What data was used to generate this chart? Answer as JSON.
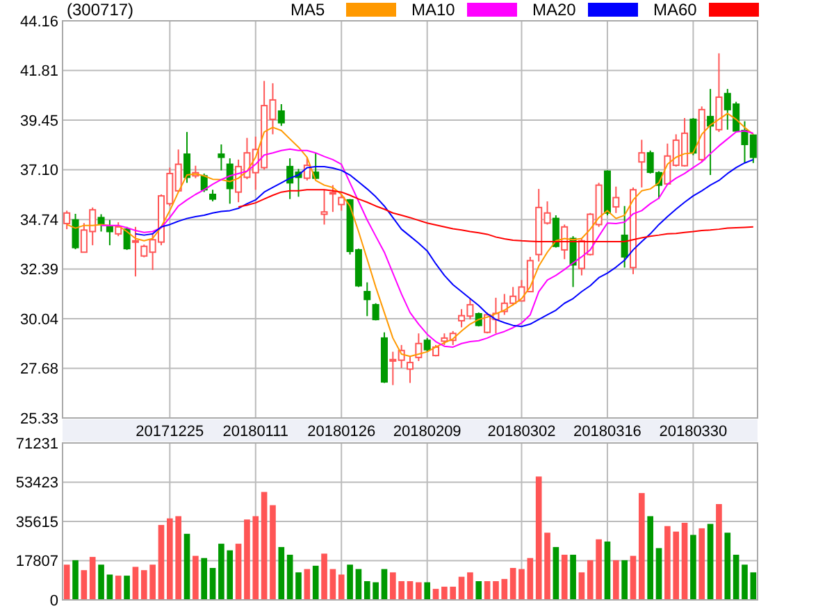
{
  "chart_data": [
    {
      "type": "candlestick",
      "title": "(300717)",
      "categories": [
        null,
        null,
        null,
        null,
        null,
        null,
        null,
        null,
        null,
        null,
        null,
        null,
        "20171225",
        null,
        null,
        null,
        null,
        null,
        null,
        null,
        null,
        null,
        "20180111",
        null,
        null,
        null,
        null,
        null,
        null,
        null,
        null,
        null,
        "20180126",
        null,
        null,
        null,
        null,
        null,
        null,
        null,
        null,
        null,
        "20180209",
        null,
        null,
        null,
        null,
        null,
        null,
        null,
        null,
        null,
        null,
        "20180302",
        null,
        null,
        null,
        null,
        null,
        null,
        null,
        null,
        null,
        "20180316",
        null,
        null,
        null,
        null,
        null,
        null,
        null,
        null,
        null,
        "20180330",
        null,
        null,
        null,
        null,
        null,
        null,
        null
      ],
      "ohlc": [
        [
          34.55,
          35.16,
          34.28,
          35.05
        ],
        [
          34.72,
          35.01,
          33.33,
          33.41
        ],
        [
          33.19,
          34.57,
          33.17,
          34.24
        ],
        [
          34.17,
          35.31,
          33.52,
          35.2
        ],
        [
          34.83,
          34.99,
          34.17,
          34.55
        ],
        [
          34.39,
          34.72,
          33.52,
          34.17
        ],
        [
          34.06,
          34.61,
          33.95,
          34.39
        ],
        [
          34.28,
          34.39,
          33.3,
          33.36
        ],
        [
          33.7,
          34.39,
          32.04,
          33.73
        ],
        [
          33.01,
          33.55,
          32.95,
          33.47
        ],
        [
          33.19,
          34.06,
          32.35,
          33.78
        ],
        [
          33.67,
          35.93,
          33.52,
          35.86
        ],
        [
          35.49,
          37.2,
          35.38,
          36.92
        ],
        [
          36.1,
          38.06,
          36.04,
          37.36
        ],
        [
          37.84,
          38.89,
          36.48,
          36.74
        ],
        [
          36.81,
          37.29,
          36.7,
          36.96
        ],
        [
          36.81,
          36.92,
          36.04,
          36.15
        ],
        [
          35.93,
          36.15,
          35.6,
          35.71
        ],
        [
          37.84,
          38.3,
          37.07,
          37.69
        ],
        [
          37.36,
          37.64,
          35.49,
          36.21
        ],
        [
          36.04,
          37.58,
          35.56,
          37.25
        ],
        [
          36.74,
          38.61,
          36.65,
          37.9
        ],
        [
          36.96,
          38.67,
          36.15,
          38.06
        ],
        [
          37.2,
          41.31,
          37.1,
          40.14
        ],
        [
          39.49,
          41.2,
          38.78,
          40.41
        ],
        [
          39.88,
          40.21,
          39.18,
          39.33
        ],
        [
          37.25,
          37.64,
          35.71,
          36.48
        ],
        [
          36.98,
          37.14,
          35.82,
          36.74
        ],
        [
          36.7,
          37.69,
          36.59,
          37.31
        ],
        [
          36.98,
          37.9,
          36.65,
          36.7
        ],
        [
          34.99,
          36.15,
          34.5,
          35.1
        ],
        [
          36.0,
          36.37,
          35.1,
          36.02
        ],
        [
          35.45,
          35.93,
          35.16,
          35.78
        ],
        [
          35.67,
          35.71,
          33.08,
          33.23
        ],
        [
          33.3,
          33.36,
          31.54,
          31.6
        ],
        [
          31.32,
          31.76,
          30.16,
          30.95
        ],
        [
          30.7,
          30.77,
          29.96,
          30.0
        ],
        [
          29.12,
          29.39,
          26.99,
          27.04
        ],
        [
          28.03,
          28.47,
          26.89,
          28.1
        ],
        [
          28.07,
          28.79,
          27.7,
          28.53
        ],
        [
          27.65,
          28.25,
          26.99,
          27.96
        ],
        [
          28.2,
          29.34,
          28.03,
          28.86
        ],
        [
          29.01,
          29.12,
          28.47,
          28.57
        ],
        [
          28.29,
          28.79,
          28.25,
          28.69
        ],
        [
          28.97,
          29.34,
          28.79,
          29.12
        ],
        [
          29.01,
          29.45,
          28.79,
          29.34
        ],
        [
          29.94,
          30.49,
          29.63,
          30.18
        ],
        [
          30.16,
          30.99,
          30.0,
          30.7
        ],
        [
          30.27,
          30.33,
          29.67,
          29.72
        ],
        [
          29.39,
          30.33,
          29.34,
          30.22
        ],
        [
          30.0,
          31.03,
          29.34,
          30.29
        ],
        [
          30.38,
          31.21,
          30.22,
          30.77
        ],
        [
          30.77,
          31.54,
          30.66,
          31.1
        ],
        [
          30.88,
          31.87,
          30.88,
          31.54
        ],
        [
          31.32,
          32.97,
          31.32,
          32.79
        ],
        [
          33.08,
          36.19,
          32.75,
          35.31
        ],
        [
          34.57,
          35.6,
          34.5,
          35.05
        ],
        [
          34.79,
          34.94,
          33.41,
          33.47
        ],
        [
          33.3,
          34.5,
          32.86,
          34.39
        ],
        [
          33.84,
          33.95,
          31.54,
          32.59
        ],
        [
          32.42,
          33.84,
          32.09,
          33.73
        ],
        [
          33.08,
          35.05,
          33.03,
          34.99
        ],
        [
          34.5,
          36.48,
          34.39,
          36.37
        ],
        [
          37.03,
          37.07,
          34.94,
          35.05
        ],
        [
          35.34,
          36.3,
          35.05,
          35.78
        ],
        [
          33.99,
          35.38,
          32.46,
          32.97
        ],
        [
          32.46,
          36.26,
          32.15,
          36.15
        ],
        [
          37.47,
          38.52,
          36.26,
          37.9
        ],
        [
          37.9,
          38.01,
          36.92,
          36.98
        ],
        [
          36.96,
          37.03,
          35.71,
          36.37
        ],
        [
          36.43,
          38.34,
          36.37,
          37.75
        ],
        [
          37.31,
          38.78,
          37.25,
          38.5
        ],
        [
          37.29,
          39.55,
          37.25,
          38.83
        ],
        [
          39.49,
          39.55,
          37.79,
          37.9
        ],
        [
          37.58,
          40.1,
          37.47,
          39.95
        ],
        [
          39.62,
          40.93,
          36.85,
          39.18
        ],
        [
          39.0,
          42.62,
          38.89,
          40.54
        ],
        [
          40.71,
          40.93,
          39.0,
          39.95
        ],
        [
          40.21,
          40.32,
          38.89,
          38.94
        ],
        [
          38.96,
          39.4,
          37.42,
          38.3
        ],
        [
          38.74,
          38.78,
          37.42,
          37.69
        ]
      ],
      "colors": [
        "#ff5555",
        "#009900",
        "#ff5555",
        "#ff5555",
        "#009900",
        "#009900",
        "#ff5555",
        "#009900",
        "#ff5555",
        "#ff5555",
        "#ff5555",
        "#ff5555",
        "#ff5555",
        "#ff5555",
        "#009900",
        "#ff5555",
        "#009900",
        "#009900",
        "#009900",
        "#009900",
        "#ff5555",
        "#ff5555",
        "#ff5555",
        "#ff5555",
        "#ff5555",
        "#009900",
        "#009900",
        "#009900",
        "#ff5555",
        "#009900",
        "#ff5555",
        "#ff5555",
        "#ff5555",
        "#009900",
        "#009900",
        "#009900",
        "#009900",
        "#009900",
        "#ff5555",
        "#ff5555",
        "#ff5555",
        "#ff5555",
        "#009900",
        "#ff5555",
        "#ff5555",
        "#ff5555",
        "#ff5555",
        "#ff5555",
        "#009900",
        "#ff5555",
        "#ff5555",
        "#ff5555",
        "#ff5555",
        "#ff5555",
        "#ff5555",
        "#ff5555",
        "#ff5555",
        "#009900",
        "#ff5555",
        "#009900",
        "#ff5555",
        "#ff5555",
        "#ff5555",
        "#009900",
        "#ff5555",
        "#009900",
        "#ff5555",
        "#ff5555",
        "#009900",
        "#009900",
        "#ff5555",
        "#ff5555",
        "#ff5555",
        "#009900",
        "#ff5555",
        "#009900",
        "#ff5555",
        "#009900",
        "#009900",
        "#009900",
        "#009900"
      ],
      "series": [
        {
          "name": "MA5",
          "type": "line",
          "color": "#ff9900",
          "values": [
            34.5,
            34.33,
            34.46,
            34.46,
            34.5,
            34.46,
            34.44,
            34.17,
            33.84,
            33.73,
            33.84,
            34.39,
            35.16,
            36.04,
            36.85,
            36.9,
            36.81,
            36.65,
            36.63,
            36.54,
            36.7,
            37.03,
            37.69,
            38.89,
            39.11,
            38.96,
            38.56,
            38.17,
            37.69,
            36.59,
            36.37,
            36.26,
            35.93,
            35.38,
            34.17,
            32.86,
            31.54,
            30.33,
            29.12,
            28.36,
            28.25,
            28.36,
            28.47,
            28.69,
            28.9,
            29.08,
            29.45,
            29.78,
            30.0,
            30.11,
            30.27,
            30.44,
            30.7,
            30.99,
            31.54,
            32.53,
            33.19,
            33.73,
            33.84,
            33.78,
            33.84,
            34.28,
            34.83,
            35.16,
            34.79,
            34.94,
            35.67,
            36.1,
            36.19,
            36.48,
            37.36,
            37.69,
            37.86,
            37.9,
            38.78,
            39.22,
            39.49,
            39.77,
            39.49,
            39.11,
            38.78
          ]
        },
        {
          "name": "MA10",
          "type": "line",
          "color": "#ff00ff",
          "values": [
            null,
            null,
            null,
            null,
            34.46,
            34.46,
            34.46,
            34.35,
            34.22,
            34.13,
            34.17,
            34.35,
            34.83,
            35.38,
            35.67,
            35.93,
            36.15,
            36.41,
            36.63,
            36.81,
            36.92,
            37.03,
            37.36,
            37.8,
            37.9,
            38.01,
            38.08,
            38.01,
            38.01,
            37.9,
            37.73,
            37.58,
            37.36,
            36.48,
            35.6,
            34.72,
            33.95,
            33.19,
            32.2,
            31.21,
            30.33,
            29.78,
            29.3,
            28.95,
            28.73,
            28.69,
            28.86,
            28.95,
            28.99,
            29.12,
            29.3,
            29.43,
            29.61,
            29.83,
            30.22,
            31.32,
            31.87,
            32.09,
            32.37,
            32.68,
            32.97,
            33.3,
            33.95,
            34.57,
            34.55,
            34.61,
            35.01,
            35.16,
            35.49,
            35.75,
            36.41,
            36.7,
            36.92,
            37.2,
            37.47,
            37.86,
            38.23,
            38.56,
            38.89,
            38.94,
            38.83
          ]
        },
        {
          "name": "MA20",
          "type": "line",
          "color": "#0000ff",
          "values": [
            null,
            null,
            null,
            null,
            null,
            null,
            null,
            null,
            34.06,
            34.0,
            34.06,
            34.39,
            34.5,
            34.66,
            34.79,
            34.88,
            34.94,
            35.05,
            35.12,
            35.16,
            35.27,
            35.49,
            35.67,
            36.04,
            36.26,
            36.48,
            36.7,
            36.85,
            37.2,
            37.25,
            37.25,
            37.18,
            37.07,
            36.85,
            36.52,
            36.19,
            35.82,
            35.38,
            34.83,
            34.28,
            33.95,
            33.62,
            33.25,
            32.64,
            32.09,
            31.65,
            31.32,
            30.99,
            30.66,
            30.27,
            30.0,
            29.85,
            29.72,
            29.67,
            29.78,
            30.0,
            30.22,
            30.44,
            30.77,
            30.99,
            31.32,
            31.6,
            31.98,
            32.2,
            32.48,
            32.81,
            33.3,
            33.69,
            34.06,
            34.5,
            34.88,
            35.23,
            35.56,
            35.86,
            36.1,
            36.37,
            36.59,
            36.92,
            37.2,
            37.42,
            37.58
          ]
        },
        {
          "name": "MA60",
          "type": "line",
          "color": "#ff0000",
          "values": [
            null,
            null,
            null,
            null,
            null,
            null,
            null,
            null,
            null,
            null,
            null,
            null,
            null,
            null,
            null,
            null,
            null,
            null,
            null,
            null,
            35.34,
            35.42,
            35.53,
            35.71,
            35.89,
            36.04,
            36.1,
            36.1,
            36.15,
            36.15,
            36.15,
            36.1,
            36.04,
            35.89,
            35.71,
            35.56,
            35.38,
            35.23,
            35.05,
            34.94,
            34.83,
            34.7,
            34.57,
            34.48,
            34.39,
            34.3,
            34.24,
            34.17,
            34.11,
            34.04,
            33.91,
            33.82,
            33.76,
            33.73,
            33.71,
            33.69,
            33.69,
            33.69,
            33.69,
            33.69,
            33.69,
            33.69,
            33.69,
            33.69,
            33.69,
            33.69,
            33.78,
            33.87,
            33.95,
            34.0,
            34.06,
            34.08,
            34.13,
            34.17,
            34.22,
            34.24,
            34.28,
            34.33,
            34.35,
            34.37,
            34.39
          ]
        }
      ],
      "ylim": [
        25.33,
        44.16
      ],
      "yticks": [
        25.33,
        27.68,
        30.04,
        32.39,
        34.74,
        {
          "value": 37.1,
          "label": "37.10"
        },
        39.45,
        41.81,
        44.16
      ],
      "grid": true,
      "legend": "top right"
    },
    {
      "type": "bar",
      "categories": [
        null,
        null,
        null,
        null,
        null,
        null,
        null,
        null,
        null,
        null,
        null,
        null,
        "20171225",
        null,
        null,
        null,
        null,
        null,
        null,
        null,
        null,
        null,
        "20180111",
        null,
        null,
        null,
        null,
        null,
        null,
        null,
        null,
        null,
        "20180126",
        null,
        null,
        null,
        null,
        null,
        null,
        null,
        null,
        null,
        "20180209",
        null,
        null,
        null,
        null,
        null,
        null,
        null,
        null,
        null,
        null,
        "20180302",
        null,
        null,
        null,
        null,
        null,
        null,
        null,
        null,
        null,
        "20180316",
        null,
        null,
        null,
        null,
        null,
        null,
        null,
        null,
        null,
        "20180330",
        null,
        null,
        null,
        null,
        null,
        null,
        null
      ],
      "values": [
        16000,
        18000,
        13500,
        19500,
        16000,
        11500,
        11000,
        11000,
        15000,
        13500,
        16000,
        34000,
        37000,
        38000,
        30000,
        20000,
        19000,
        14500,
        25500,
        22500,
        25500,
        36500,
        38000,
        49000,
        43000,
        24000,
        20500,
        12500,
        14000,
        15500,
        21000,
        14000,
        11500,
        16000,
        14000,
        8500,
        8000,
        14000,
        12500,
        8500,
        8500,
        8000,
        8000,
        5000,
        6000,
        6000,
        10500,
        12500,
        8500,
        8500,
        8500,
        9500,
        14500,
        14000,
        19000,
        56000,
        30500,
        24000,
        20500,
        20500,
        12500,
        18000,
        27500,
        26500,
        18000,
        18000,
        20000,
        48500,
        38000,
        23500,
        33500,
        31000,
        35000,
        29500,
        32500,
        34500,
        43500,
        30500,
        20500,
        16000,
        12500
      ],
      "colors": [
        "#ff5555",
        "#009900",
        "#ff5555",
        "#ff5555",
        "#009900",
        "#009900",
        "#ff5555",
        "#009900",
        "#ff5555",
        "#ff5555",
        "#ff5555",
        "#ff5555",
        "#ff5555",
        "#ff5555",
        "#009900",
        "#ff5555",
        "#009900",
        "#009900",
        "#009900",
        "#009900",
        "#ff5555",
        "#ff5555",
        "#ff5555",
        "#ff5555",
        "#ff5555",
        "#009900",
        "#009900",
        "#009900",
        "#ff5555",
        "#009900",
        "#ff5555",
        "#ff5555",
        "#ff5555",
        "#009900",
        "#009900",
        "#009900",
        "#009900",
        "#009900",
        "#ff5555",
        "#ff5555",
        "#ff5555",
        "#ff5555",
        "#009900",
        "#ff5555",
        "#ff5555",
        "#ff5555",
        "#ff5555",
        "#ff5555",
        "#009900",
        "#ff5555",
        "#ff5555",
        "#ff5555",
        "#ff5555",
        "#ff5555",
        "#ff5555",
        "#ff5555",
        "#ff5555",
        "#009900",
        "#ff5555",
        "#009900",
        "#ff5555",
        "#ff5555",
        "#ff5555",
        "#009900",
        "#ff5555",
        "#009900",
        "#ff5555",
        "#ff5555",
        "#009900",
        "#009900",
        "#ff5555",
        "#ff5555",
        "#ff5555",
        "#009900",
        "#ff5555",
        "#009900",
        "#ff5555",
        "#009900",
        "#009900",
        "#009900",
        "#009900"
      ],
      "ylim": [
        0,
        71231
      ],
      "yticks": [
        0,
        17807,
        35615,
        53423,
        71231
      ],
      "grid": true,
      "tick_labels": "y"
    }
  ]
}
